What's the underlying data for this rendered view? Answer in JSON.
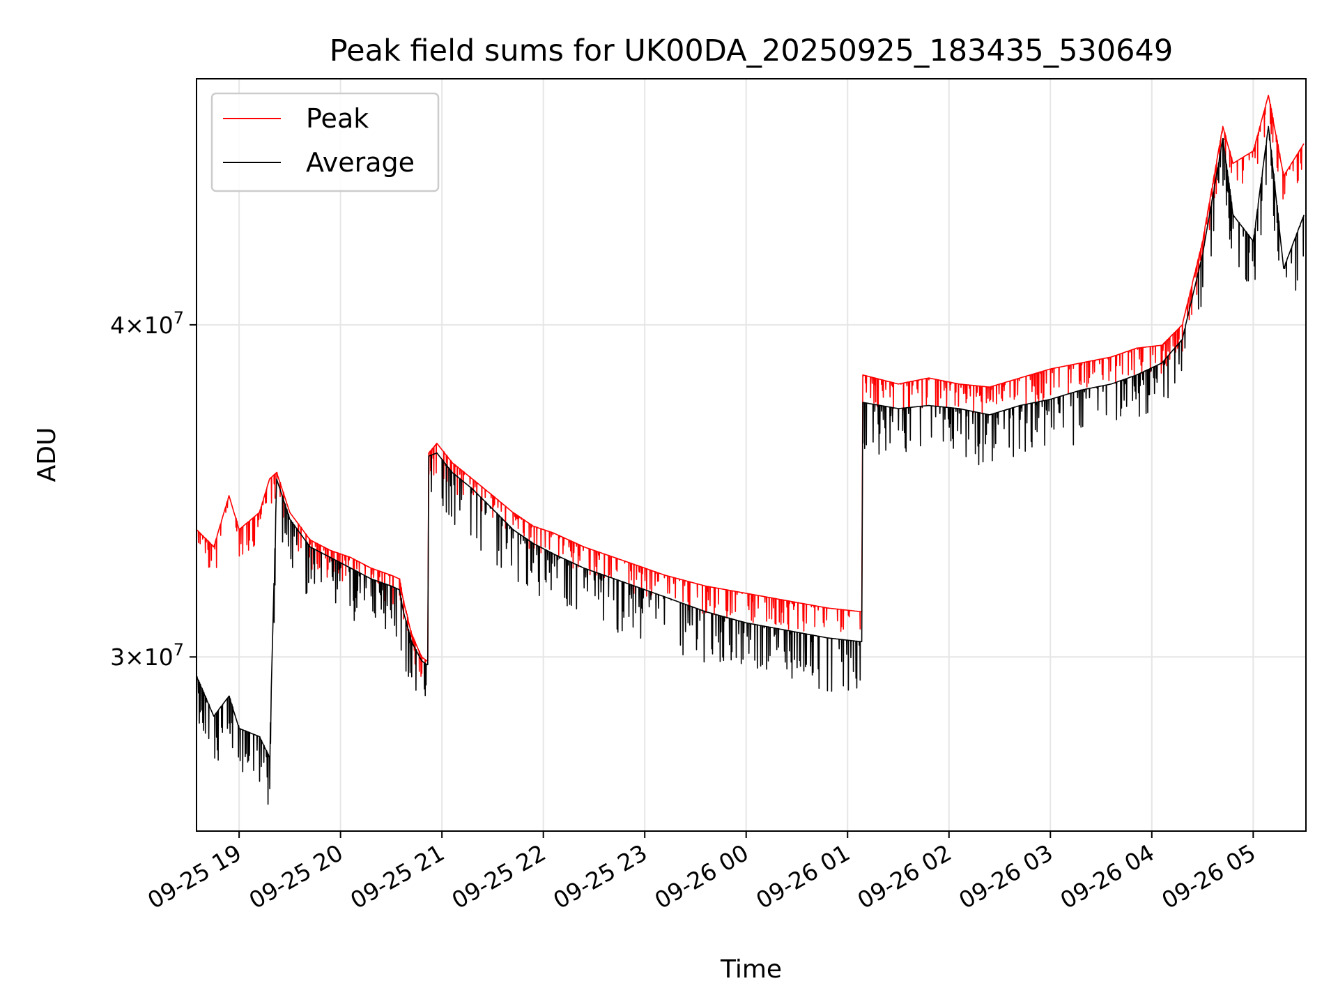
{
  "chart_data": {
    "type": "line",
    "title": "Peak field sums for UK00DA_20250925_183435_530649",
    "xlabel": "Time",
    "ylabel": "ADU",
    "yscale": "log",
    "ylim": [
      25800000,
      49500000
    ],
    "xlim_hours": [
      18.58,
      29.52
    ],
    "grid": true,
    "legend_position": "top-left",
    "x_ticks": [
      {
        "hour": 19,
        "label": "09-25 19"
      },
      {
        "hour": 20,
        "label": "09-25 20"
      },
      {
        "hour": 21,
        "label": "09-25 21"
      },
      {
        "hour": 22,
        "label": "09-25 22"
      },
      {
        "hour": 23,
        "label": "09-25 23"
      },
      {
        "hour": 24,
        "label": "09-26 00"
      },
      {
        "hour": 25,
        "label": "09-26 01"
      },
      {
        "hour": 26,
        "label": "09-26 02"
      },
      {
        "hour": 27,
        "label": "09-26 03"
      },
      {
        "hour": 28,
        "label": "09-26 04"
      },
      {
        "hour": 29,
        "label": "09-26 05"
      }
    ],
    "y_ticks": [
      {
        "value": 30000000,
        "mantissa": "3",
        "exponent": "7"
      },
      {
        "value": 40000000,
        "mantissa": "4",
        "exponent": "7"
      }
    ],
    "series": [
      {
        "name": "Peak",
        "color": "#ff0000",
        "points": [
          [
            18.58,
            33500000
          ],
          [
            18.75,
            33000000
          ],
          [
            18.9,
            34500000
          ],
          [
            19.0,
            33500000
          ],
          [
            19.2,
            34000000
          ],
          [
            19.3,
            35000000
          ],
          [
            19.37,
            35200000
          ],
          [
            19.5,
            34000000
          ],
          [
            19.7,
            33200000
          ],
          [
            19.9,
            32900000
          ],
          [
            20.1,
            32700000
          ],
          [
            20.3,
            32400000
          ],
          [
            20.5,
            32200000
          ],
          [
            20.58,
            32100000
          ],
          [
            20.62,
            31500000
          ],
          [
            20.7,
            30600000
          ],
          [
            20.8,
            30000000
          ],
          [
            20.85,
            29900000
          ],
          [
            20.87,
            35800000
          ],
          [
            20.95,
            36100000
          ],
          [
            21.1,
            35500000
          ],
          [
            21.3,
            35000000
          ],
          [
            21.5,
            34500000
          ],
          [
            21.7,
            34000000
          ],
          [
            21.9,
            33600000
          ],
          [
            22.1,
            33400000
          ],
          [
            22.4,
            33000000
          ],
          [
            22.8,
            32600000
          ],
          [
            23.2,
            32200000
          ],
          [
            23.6,
            31900000
          ],
          [
            24.0,
            31700000
          ],
          [
            24.4,
            31500000
          ],
          [
            24.8,
            31300000
          ],
          [
            25.13,
            31200000
          ],
          [
            25.15,
            38300000
          ],
          [
            25.5,
            38000000
          ],
          [
            25.8,
            38200000
          ],
          [
            26.1,
            38000000
          ],
          [
            26.4,
            37900000
          ],
          [
            26.7,
            38200000
          ],
          [
            27.0,
            38500000
          ],
          [
            27.3,
            38700000
          ],
          [
            27.6,
            38900000
          ],
          [
            27.85,
            39200000
          ],
          [
            28.1,
            39300000
          ],
          [
            28.3,
            40000000
          ],
          [
            28.5,
            43000000
          ],
          [
            28.7,
            47500000
          ],
          [
            28.8,
            46000000
          ],
          [
            29.0,
            46500000
          ],
          [
            29.15,
            48800000
          ],
          [
            29.3,
            45500000
          ],
          [
            29.5,
            46800000
          ]
        ]
      },
      {
        "name": "Average",
        "color": "#000000",
        "points": [
          [
            18.58,
            29500000
          ],
          [
            18.75,
            28500000
          ],
          [
            18.9,
            29000000
          ],
          [
            19.0,
            28200000
          ],
          [
            19.2,
            28000000
          ],
          [
            19.3,
            27500000
          ],
          [
            19.37,
            35000000
          ],
          [
            19.5,
            33800000
          ],
          [
            19.7,
            33000000
          ],
          [
            19.9,
            32700000
          ],
          [
            20.1,
            32400000
          ],
          [
            20.3,
            32100000
          ],
          [
            20.5,
            31900000
          ],
          [
            20.58,
            31800000
          ],
          [
            20.62,
            31200000
          ],
          [
            20.7,
            30400000
          ],
          [
            20.8,
            29900000
          ],
          [
            20.85,
            29800000
          ],
          [
            20.87,
            35700000
          ],
          [
            20.95,
            35800000
          ],
          [
            21.1,
            35200000
          ],
          [
            21.3,
            34700000
          ],
          [
            21.5,
            34100000
          ],
          [
            21.7,
            33500000
          ],
          [
            21.9,
            33100000
          ],
          [
            22.1,
            32800000
          ],
          [
            22.4,
            32400000
          ],
          [
            22.8,
            32000000
          ],
          [
            23.2,
            31600000
          ],
          [
            23.6,
            31200000
          ],
          [
            24.0,
            30900000
          ],
          [
            24.4,
            30700000
          ],
          [
            24.8,
            30500000
          ],
          [
            25.13,
            30400000
          ],
          [
            25.15,
            37400000
          ],
          [
            25.5,
            37200000
          ],
          [
            25.8,
            37300000
          ],
          [
            26.1,
            37200000
          ],
          [
            26.4,
            37000000
          ],
          [
            26.7,
            37300000
          ],
          [
            27.0,
            37500000
          ],
          [
            27.3,
            37800000
          ],
          [
            27.6,
            38000000
          ],
          [
            27.85,
            38300000
          ],
          [
            28.1,
            38700000
          ],
          [
            28.3,
            39500000
          ],
          [
            28.5,
            42500000
          ],
          [
            28.7,
            47000000
          ],
          [
            28.8,
            44000000
          ],
          [
            29.0,
            43000000
          ],
          [
            29.15,
            47500000
          ],
          [
            29.3,
            42000000
          ],
          [
            29.5,
            44000000
          ]
        ]
      }
    ]
  }
}
